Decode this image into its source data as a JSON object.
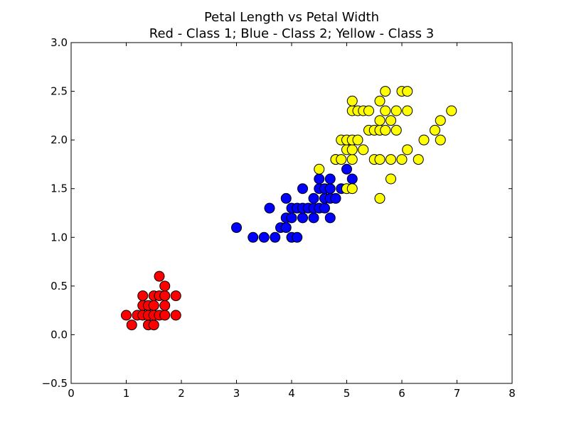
{
  "chart_data": {
    "type": "scatter",
    "title": "Petal Length vs Petal Width",
    "subtitle": "Red - Class 1; Blue - Class 2; Yellow - Class 3",
    "xlabel": "",
    "ylabel": "",
    "xlim": [
      0,
      8
    ],
    "ylim": [
      -0.5,
      3.0
    ],
    "x_ticks": [
      "0",
      "1",
      "2",
      "3",
      "4",
      "5",
      "6",
      "7",
      "8"
    ],
    "y_ticks": [
      "−0.5",
      "0.0",
      "0.5",
      "1.0",
      "1.5",
      "2.0",
      "2.5",
      "3.0"
    ],
    "grid": false,
    "series": [
      {
        "color": "#ff0000",
        "points": [
          [
            1.0,
            0.2
          ],
          [
            1.1,
            0.1
          ],
          [
            1.2,
            0.2
          ],
          [
            1.3,
            0.2
          ],
          [
            1.3,
            0.3
          ],
          [
            1.3,
            0.4
          ],
          [
            1.4,
            0.1
          ],
          [
            1.4,
            0.2
          ],
          [
            1.4,
            0.3
          ],
          [
            1.5,
            0.1
          ],
          [
            1.5,
            0.2
          ],
          [
            1.5,
            0.3
          ],
          [
            1.5,
            0.4
          ],
          [
            1.6,
            0.2
          ],
          [
            1.6,
            0.4
          ],
          [
            1.6,
            0.6
          ],
          [
            1.7,
            0.2
          ],
          [
            1.7,
            0.3
          ],
          [
            1.7,
            0.4
          ],
          [
            1.7,
            0.5
          ],
          [
            1.9,
            0.2
          ],
          [
            1.9,
            0.4
          ]
        ]
      },
      {
        "color": "#0000ff",
        "points": [
          [
            3.0,
            1.1
          ],
          [
            3.3,
            1.0
          ],
          [
            3.5,
            1.0
          ],
          [
            3.6,
            1.3
          ],
          [
            3.7,
            1.0
          ],
          [
            3.8,
            1.1
          ],
          [
            3.9,
            1.1
          ],
          [
            3.9,
            1.2
          ],
          [
            3.9,
            1.4
          ],
          [
            4.0,
            1.0
          ],
          [
            4.0,
            1.2
          ],
          [
            4.0,
            1.3
          ],
          [
            4.1,
            1.0
          ],
          [
            4.1,
            1.3
          ],
          [
            4.2,
            1.2
          ],
          [
            4.2,
            1.3
          ],
          [
            4.2,
            1.5
          ],
          [
            4.3,
            1.3
          ],
          [
            4.4,
            1.2
          ],
          [
            4.4,
            1.3
          ],
          [
            4.4,
            1.4
          ],
          [
            4.5,
            1.3
          ],
          [
            4.5,
            1.5
          ],
          [
            4.5,
            1.6
          ],
          [
            4.6,
            1.3
          ],
          [
            4.6,
            1.4
          ],
          [
            4.6,
            1.5
          ],
          [
            4.7,
            1.2
          ],
          [
            4.7,
            1.4
          ],
          [
            4.7,
            1.5
          ],
          [
            4.7,
            1.6
          ],
          [
            4.8,
            1.4
          ],
          [
            4.8,
            1.8
          ],
          [
            4.9,
            1.5
          ],
          [
            5.0,
            1.7
          ],
          [
            5.1,
            1.6
          ]
        ]
      },
      {
        "color": "#ffff00",
        "points": [
          [
            4.5,
            1.7
          ],
          [
            4.8,
            1.8
          ],
          [
            4.9,
            1.8
          ],
          [
            4.9,
            2.0
          ],
          [
            5.0,
            1.5
          ],
          [
            5.0,
            1.9
          ],
          [
            5.0,
            2.0
          ],
          [
            5.1,
            1.5
          ],
          [
            5.1,
            1.8
          ],
          [
            5.1,
            1.9
          ],
          [
            5.1,
            2.0
          ],
          [
            5.1,
            2.3
          ],
          [
            5.1,
            2.4
          ],
          [
            5.2,
            2.0
          ],
          [
            5.2,
            2.3
          ],
          [
            5.3,
            1.9
          ],
          [
            5.3,
            2.3
          ],
          [
            5.4,
            2.1
          ],
          [
            5.4,
            2.3
          ],
          [
            5.5,
            1.8
          ],
          [
            5.5,
            2.1
          ],
          [
            5.6,
            1.4
          ],
          [
            5.6,
            1.8
          ],
          [
            5.6,
            2.1
          ],
          [
            5.6,
            2.2
          ],
          [
            5.6,
            2.4
          ],
          [
            5.7,
            2.1
          ],
          [
            5.7,
            2.3
          ],
          [
            5.7,
            2.5
          ],
          [
            5.8,
            1.6
          ],
          [
            5.8,
            1.8
          ],
          [
            5.8,
            2.2
          ],
          [
            5.9,
            2.1
          ],
          [
            5.9,
            2.3
          ],
          [
            6.0,
            1.8
          ],
          [
            6.0,
            2.5
          ],
          [
            6.1,
            1.9
          ],
          [
            6.1,
            2.3
          ],
          [
            6.1,
            2.5
          ],
          [
            6.3,
            1.8
          ],
          [
            6.4,
            2.0
          ],
          [
            6.6,
            2.1
          ],
          [
            6.7,
            2.0
          ],
          [
            6.7,
            2.2
          ],
          [
            6.9,
            2.3
          ]
        ]
      }
    ]
  }
}
